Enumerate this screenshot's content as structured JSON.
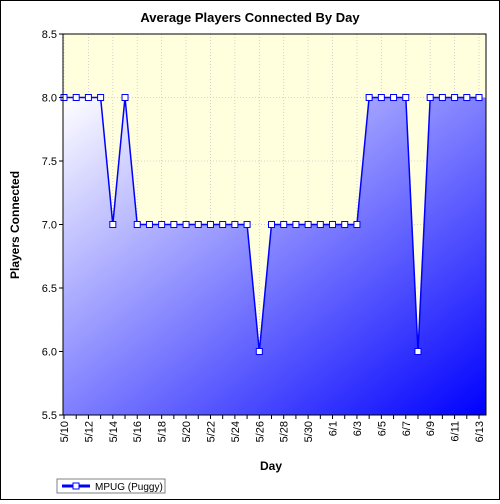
{
  "chart_data": {
    "type": "area",
    "title": "Average Players Connected By Day",
    "xlabel": "Day",
    "ylabel": "Players Connected",
    "ylim": [
      5.5,
      8.5
    ],
    "yticks": [
      "5.5",
      "6.0",
      "6.5",
      "7.0",
      "7.5",
      "8.0",
      "8.5"
    ],
    "x_tick_labels": [
      "5/10",
      "5/12",
      "5/14",
      "5/16",
      "5/18",
      "5/20",
      "5/22",
      "5/24",
      "5/26",
      "5/28",
      "5/30",
      "6/1",
      "6/3",
      "6/5",
      "6/7",
      "6/9",
      "6/11",
      "6/13"
    ],
    "grid": true,
    "legend_position": "bottom-left",
    "series": [
      {
        "name": "MPUG (Puggy)",
        "x": [
          "5/10",
          "5/11",
          "5/12",
          "5/13",
          "5/14",
          "5/15",
          "5/16",
          "5/17",
          "5/18",
          "5/19",
          "5/20",
          "5/21",
          "5/22",
          "5/23",
          "5/24",
          "5/25",
          "5/26",
          "5/27",
          "5/28",
          "5/29",
          "5/30",
          "5/31",
          "6/1",
          "6/2",
          "6/3",
          "6/4",
          "6/5",
          "6/6",
          "6/7",
          "6/8",
          "6/9",
          "6/10",
          "6/11",
          "6/12",
          "6/13"
        ],
        "values": [
          8,
          8,
          8,
          8,
          7,
          8,
          7,
          7,
          7,
          7,
          7,
          7,
          7,
          7,
          7,
          7,
          6,
          7,
          7,
          7,
          7,
          7,
          7,
          7,
          7,
          8,
          8,
          8,
          8,
          6,
          8,
          8,
          8,
          8,
          8
        ],
        "color": "#0000ff"
      }
    ],
    "colors": {
      "plot_top": "#ffffdd",
      "fill_light": "#ffffff",
      "fill_dark": "#0000ff",
      "line": "#0000ff"
    }
  }
}
